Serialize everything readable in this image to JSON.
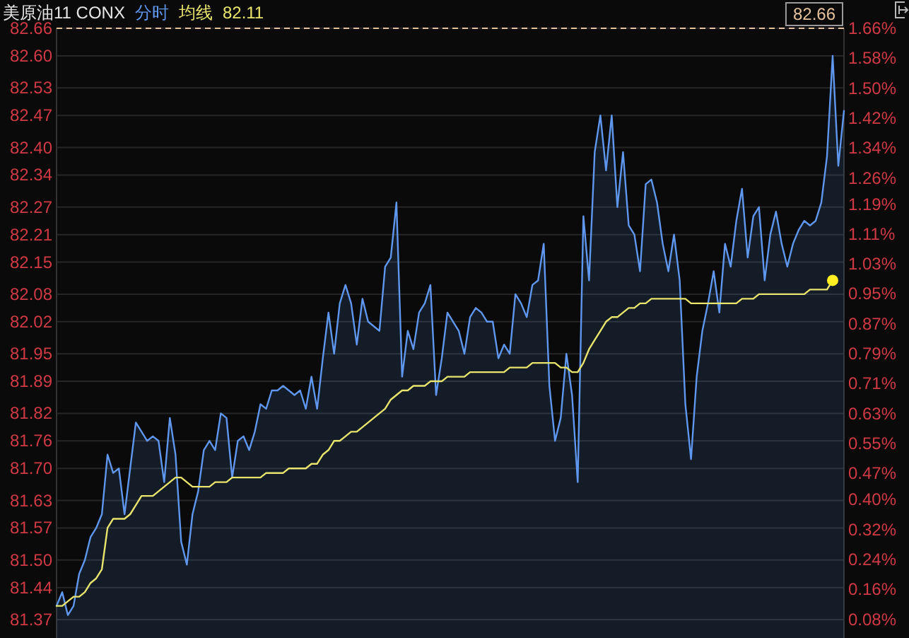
{
  "chart_data": {
    "type": "line",
    "title": "美原油11 CONX",
    "grid": "y",
    "tick_labels": "y",
    "categories": [
      null,
      null,
      null,
      null,
      null,
      null,
      null,
      null,
      null,
      null,
      null,
      null,
      null,
      null,
      null,
      null,
      null,
      null,
      null,
      null,
      null,
      null,
      null,
      null,
      null,
      null,
      null,
      null,
      null,
      null,
      null,
      null,
      null,
      null,
      null,
      null,
      null,
      null,
      null,
      null,
      null,
      null,
      null,
      null,
      null,
      null,
      null,
      null,
      null,
      null,
      null,
      null,
      null,
      null,
      null,
      null,
      null,
      null,
      null,
      null,
      null,
      null,
      null,
      null,
      null,
      null,
      null,
      null,
      null,
      null,
      null,
      null,
      null,
      null,
      null,
      null,
      null,
      null,
      null,
      null,
      null,
      null,
      null,
      null,
      null,
      null,
      null,
      null,
      null,
      null,
      null,
      null,
      null,
      null,
      null,
      null,
      null,
      null,
      null,
      null,
      null,
      null,
      null,
      null,
      null,
      null,
      null,
      null,
      null,
      null,
      null,
      null,
      null,
      null,
      null,
      null,
      null,
      null,
      null,
      null,
      null,
      null,
      null,
      null,
      null,
      null,
      null,
      null,
      null,
      null,
      null,
      null,
      null,
      null,
      null,
      null,
      null,
      null,
      null,
      null
    ],
    "ylim": [
      81.33,
      82.66
    ],
    "yticks": [
      82.66,
      {
        "value": 82.6,
        "label": "82.60"
      },
      82.53,
      82.47,
      {
        "value": 82.4,
        "label": "82.40"
      },
      82.34,
      82.27,
      82.21,
      82.15,
      82.08,
      82.02,
      81.95,
      81.89,
      81.82,
      81.76,
      {
        "value": 81.7,
        "label": "81.70"
      },
      81.63,
      81.57,
      {
        "value": 81.5,
        "label": "81.50"
      },
      81.44,
      81.37
    ],
    "y2lim": [
      0.03,
      1.66
    ],
    "y2ticks": [
      {
        "value": 1.66,
        "label": "1.66%"
      },
      {
        "value": 1.58,
        "label": "1.58%"
      },
      {
        "value": 1.5,
        "label": "1.50%"
      },
      {
        "value": 1.42,
        "label": "1.42%"
      },
      {
        "value": 1.34,
        "label": "1.34%"
      },
      {
        "value": 1.26,
        "label": "1.26%"
      },
      {
        "value": 1.19,
        "label": "1.19%"
      },
      {
        "value": 1.11,
        "label": "1.11%"
      },
      {
        "value": 1.03,
        "label": "1.03%"
      },
      {
        "value": 0.95,
        "label": "0.95%"
      },
      {
        "value": 0.87,
        "label": "0.87%"
      },
      {
        "value": 0.79,
        "label": "0.79%"
      },
      {
        "value": 0.71,
        "label": "0.71%"
      },
      {
        "value": 0.63,
        "label": "0.63%"
      },
      {
        "value": 0.55,
        "label": "0.55%"
      },
      {
        "value": 0.47,
        "label": "0.47%"
      },
      {
        "value": 0.4,
        "label": "0.40%"
      },
      {
        "value": 0.32,
        "label": "0.32%"
      },
      {
        "value": 0.24,
        "label": "0.24%"
      },
      {
        "value": 0.16,
        "label": "0.16%"
      },
      {
        "value": 0.08,
        "label": "0.08%"
      }
    ],
    "ref_lines": [
      {
        "axis": "y",
        "value": 82.66,
        "label": "82.66",
        "line_style": "dashed",
        "color": "#e6c29c"
      }
    ],
    "annotations": [
      "82.11"
    ],
    "series": [
      {
        "name": "分时",
        "type": "area",
        "color": "#5f97ee",
        "values": [
          81.4,
          81.43,
          81.38,
          81.4,
          81.47,
          81.5,
          81.55,
          81.57,
          81.6,
          81.73,
          81.69,
          81.7,
          81.6,
          81.7,
          81.8,
          81.78,
          81.76,
          81.77,
          81.76,
          81.67,
          81.81,
          81.73,
          81.54,
          81.49,
          81.6,
          81.65,
          81.74,
          81.76,
          81.74,
          81.82,
          81.81,
          81.68,
          81.76,
          81.77,
          81.74,
          81.78,
          81.84,
          81.83,
          81.87,
          81.87,
          81.88,
          81.87,
          81.86,
          81.87,
          81.83,
          81.9,
          81.83,
          81.94,
          82.04,
          81.95,
          82.06,
          82.1,
          82.06,
          81.97,
          82.07,
          82.02,
          82.01,
          82.0,
          82.14,
          82.16,
          82.28,
          81.9,
          82.0,
          81.96,
          82.04,
          82.06,
          82.1,
          81.86,
          81.94,
          82.04,
          82.02,
          82.0,
          81.95,
          82.03,
          82.05,
          82.04,
          82.02,
          82.02,
          81.94,
          81.97,
          81.95,
          82.08,
          82.06,
          82.03,
          82.1,
          82.11,
          82.19,
          81.88,
          81.76,
          81.81,
          81.95,
          81.86,
          81.67,
          82.25,
          82.11,
          82.39,
          82.47,
          82.35,
          82.47,
          82.27,
          82.39,
          82.23,
          82.21,
          82.13,
          82.32,
          82.33,
          82.28,
          82.19,
          82.13,
          82.21,
          82.11,
          81.84,
          81.72,
          81.9,
          82.0,
          82.06,
          82.13,
          82.04,
          82.19,
          82.14,
          82.24,
          82.31,
          82.16,
          82.25,
          82.27,
          82.11,
          82.21,
          82.26,
          82.19,
          82.14,
          82.19,
          82.22,
          82.24,
          82.23,
          82.24,
          82.28,
          82.38,
          82.6,
          82.36,
          82.48
        ]
      },
      {
        "name": "均线",
        "color": "#e8e46c",
        "values": [
          81.4,
          81.4,
          81.41,
          81.42,
          81.42,
          81.43,
          81.45,
          81.46,
          81.48,
          81.57,
          81.59,
          81.59,
          81.59,
          81.6,
          81.62,
          81.64,
          81.64,
          81.64,
          81.65,
          81.66,
          81.67,
          81.68,
          81.68,
          81.67,
          81.66,
          81.66,
          81.66,
          81.66,
          81.67,
          81.67,
          81.67,
          81.68,
          81.68,
          81.68,
          81.68,
          81.68,
          81.68,
          81.69,
          81.69,
          81.69,
          81.69,
          81.7,
          81.7,
          81.7,
          81.7,
          81.71,
          81.71,
          81.73,
          81.74,
          81.76,
          81.76,
          81.77,
          81.78,
          81.78,
          81.79,
          81.8,
          81.81,
          81.82,
          81.83,
          81.85,
          81.86,
          81.87,
          81.87,
          81.88,
          81.88,
          81.88,
          81.89,
          81.89,
          81.89,
          81.9,
          81.9,
          81.9,
          81.9,
          81.91,
          81.91,
          81.91,
          81.91,
          81.91,
          81.91,
          81.91,
          81.92,
          81.92,
          81.92,
          81.92,
          81.93,
          81.93,
          81.93,
          81.93,
          81.93,
          81.92,
          81.92,
          81.91,
          81.91,
          81.93,
          81.96,
          81.98,
          82.0,
          82.02,
          82.03,
          82.03,
          82.04,
          82.05,
          82.05,
          82.06,
          82.06,
          82.07,
          82.07,
          82.07,
          82.07,
          82.07,
          82.07,
          82.07,
          82.06,
          82.06,
          82.06,
          82.06,
          82.06,
          82.06,
          82.06,
          82.06,
          82.06,
          82.07,
          82.07,
          82.07,
          82.08,
          82.08,
          82.08,
          82.08,
          82.08,
          82.08,
          82.08,
          82.08,
          82.08,
          82.09,
          82.09,
          82.09,
          82.09,
          82.11,
          null,
          null
        ]
      },
      {
        "type": "scatter",
        "color": "#ffee22",
        "values": [
          null,
          null,
          null,
          null,
          null,
          null,
          null,
          null,
          null,
          null,
          null,
          null,
          null,
          null,
          null,
          null,
          null,
          null,
          null,
          null,
          null,
          null,
          null,
          null,
          null,
          null,
          null,
          null,
          null,
          null,
          null,
          null,
          null,
          null,
          null,
          null,
          null,
          null,
          null,
          null,
          null,
          null,
          null,
          null,
          null,
          null,
          null,
          null,
          null,
          null,
          null,
          null,
          null,
          null,
          null,
          null,
          null,
          null,
          null,
          null,
          null,
          null,
          null,
          null,
          null,
          null,
          null,
          null,
          null,
          null,
          null,
          null,
          null,
          null,
          null,
          null,
          null,
          null,
          null,
          null,
          null,
          null,
          null,
          null,
          null,
          null,
          null,
          null,
          null,
          null,
          null,
          null,
          null,
          null,
          null,
          null,
          null,
          null,
          null,
          null,
          null,
          null,
          null,
          null,
          null,
          null,
          null,
          null,
          null,
          null,
          null,
          null,
          null,
          null,
          null,
          null,
          null,
          null,
          null,
          null,
          null,
          null,
          null,
          null,
          null,
          null,
          null,
          null,
          null,
          null,
          null,
          null,
          null,
          null,
          null,
          null,
          null,
          82.11,
          null,
          null
        ]
      }
    ]
  }
}
